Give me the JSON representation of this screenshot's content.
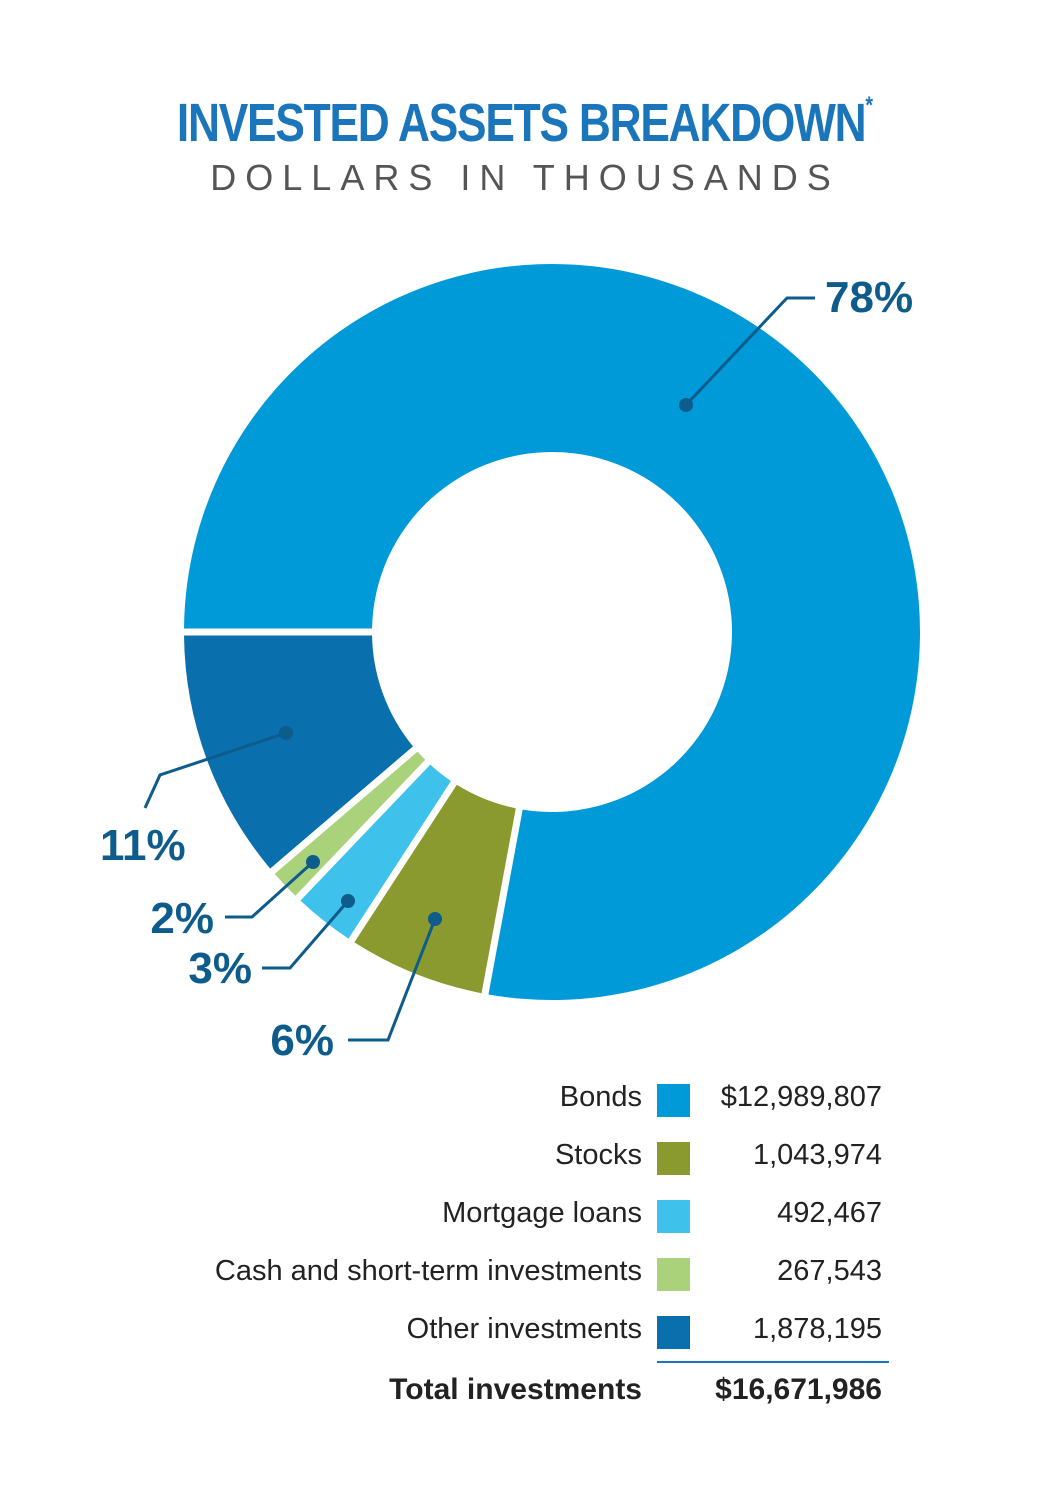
{
  "header": {
    "title": "INVESTED ASSETS BREAKDOWN",
    "title_mark": "*",
    "subtitle": "DOLLARS IN THOUSANDS"
  },
  "chart_data": {
    "type": "pie",
    "variant": "donut",
    "title": "INVESTED ASSETS BREAKDOWN*",
    "subtitle": "DOLLARS IN THOUSANDS",
    "slices": [
      {
        "name": "Bonds",
        "value": 12989807,
        "display_value": "$12,989,807",
        "percent_label": "78%",
        "color": "#009ad9"
      },
      {
        "name": "Stocks",
        "value": 1043974,
        "display_value": "1,043,974",
        "percent_label": "6%",
        "color": "#8a9a2f"
      },
      {
        "name": "Mortgage loans",
        "value": 492467,
        "display_value": "492,467",
        "percent_label": "3%",
        "color": "#3ec1ea"
      },
      {
        "name": "Cash and short-term investments",
        "value": 267543,
        "display_value": "267,543",
        "percent_label": "2%",
        "color": "#a9d27a"
      },
      {
        "name": "Other investments",
        "value": 1878195,
        "display_value": "1,878,195",
        "percent_label": "11%",
        "color": "#0a6fad"
      }
    ],
    "legend_position": "bottom-right",
    "label_color": "#0d5c8c"
  },
  "total": {
    "label": "Total investments",
    "value": "$16,671,986"
  }
}
